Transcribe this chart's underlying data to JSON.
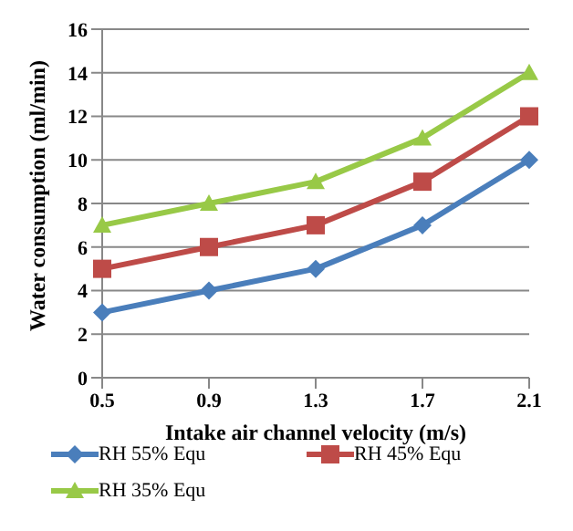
{
  "chart_data": {
    "type": "line",
    "xlabel": "Intake air channel velocity (m/s)",
    "ylabel": "Water consumption (ml/min)",
    "categories": [
      "0.5",
      "0.9",
      "1.3",
      "1.7",
      "2.1"
    ],
    "series": [
      {
        "name": "RH 55% Equ",
        "color": "#4a7ebb",
        "values": [
          3,
          4,
          5,
          7,
          10
        ],
        "marker": "diamond"
      },
      {
        "name": "RH 45% Equ",
        "color": "#be4b48",
        "values": [
          5,
          6,
          7,
          9,
          12
        ],
        "marker": "square"
      },
      {
        "name": "RH 35% Equ",
        "color": "#98c947",
        "values": [
          7,
          8,
          9,
          11,
          14
        ],
        "marker": "triangle"
      }
    ],
    "ylim": [
      0,
      16
    ],
    "yticks": [
      0,
      2,
      4,
      6,
      8,
      10,
      12,
      14,
      16
    ],
    "grid": "y",
    "legend": "bottom",
    "line_style": "solid"
  }
}
